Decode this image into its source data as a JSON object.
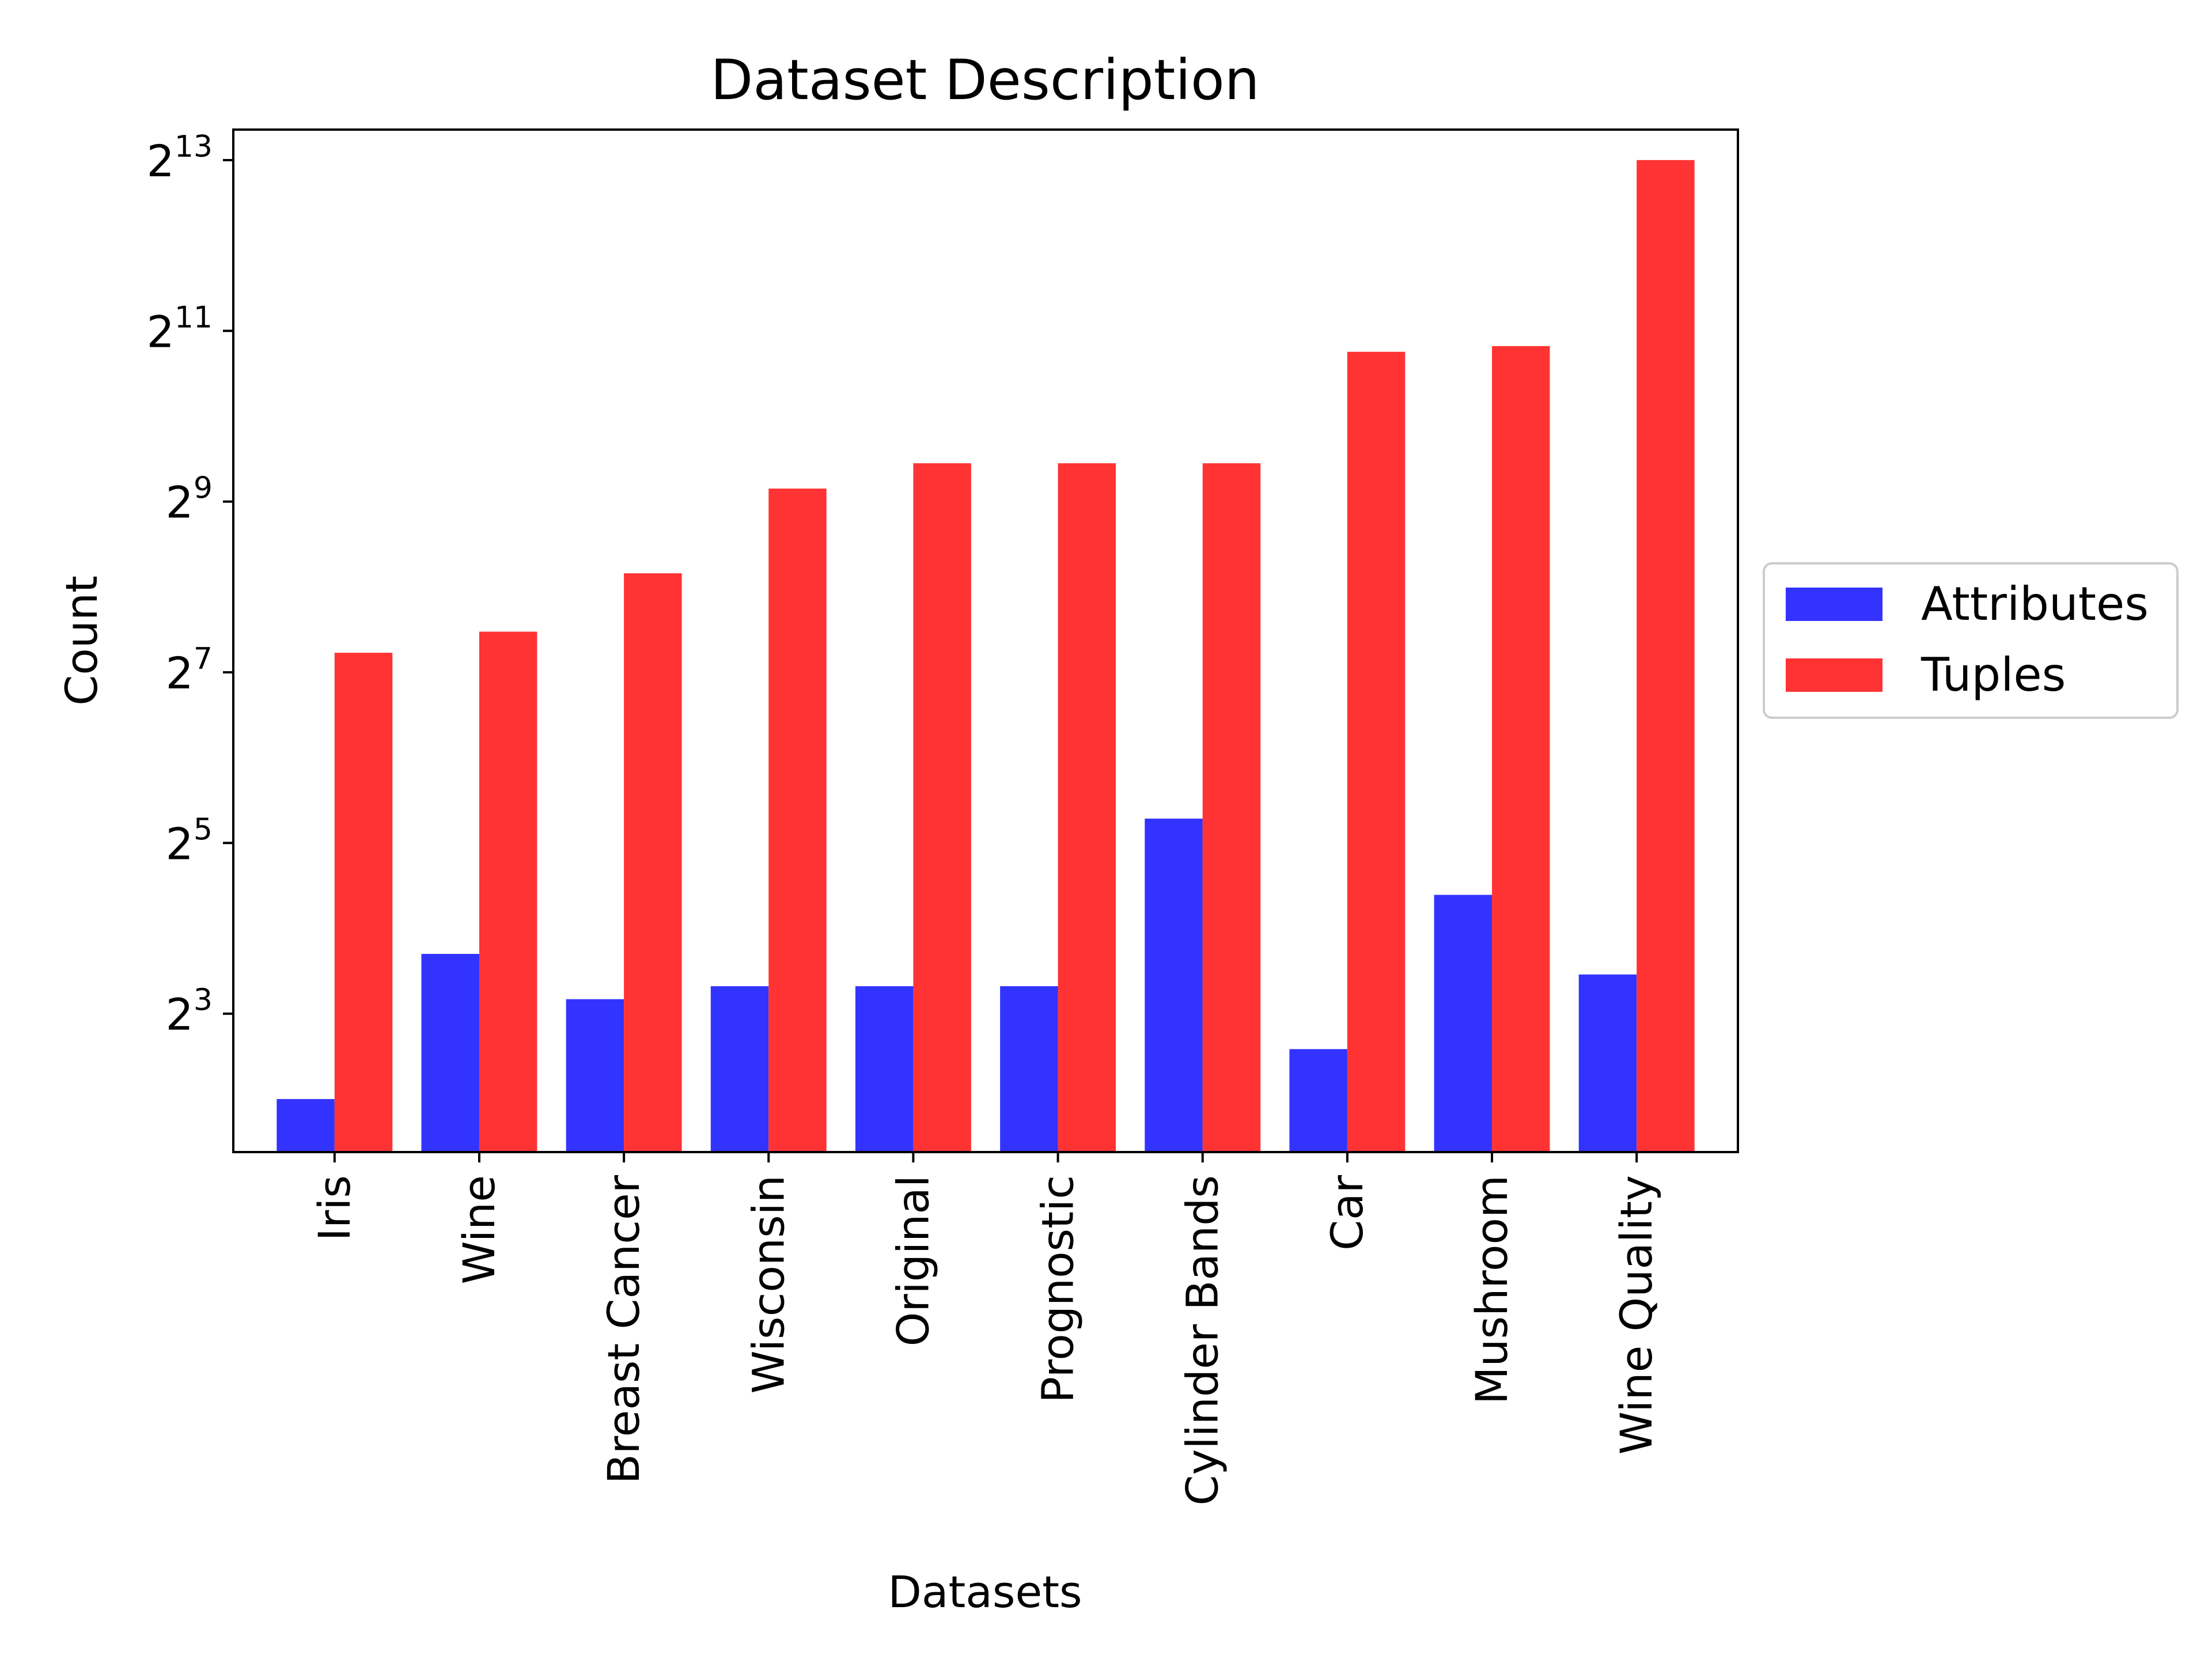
{
  "chart_data": {
    "type": "bar",
    "title": "Dataset Description",
    "xlabel": "Datasets",
    "ylabel": "Count",
    "y_scale": "log2",
    "ylim": [
      2.6,
      10500
    ],
    "y_ticks": [
      {
        "value": 8,
        "base": "2",
        "exp": "3"
      },
      {
        "value": 32,
        "base": "2",
        "exp": "5"
      },
      {
        "value": 128,
        "base": "2",
        "exp": "7"
      },
      {
        "value": 512,
        "base": "2",
        "exp": "9"
      },
      {
        "value": 2048,
        "base": "2",
        "exp": "11"
      },
      {
        "value": 8192,
        "base": "2",
        "exp": "13"
      }
    ],
    "categories": [
      "Iris",
      "Wine",
      "Breast Cancer",
      "Wisconsin",
      "Original",
      "Prognostic",
      "Cylinder Bands",
      "Car",
      "Mushroom",
      "Wine Quality"
    ],
    "series": [
      {
        "name": "Attributes",
        "color": "#3333ff",
        "values": [
          4,
          13,
          9,
          10,
          10,
          10,
          39,
          6,
          21,
          11
        ]
      },
      {
        "name": "Tuples",
        "color": "#ff3333",
        "values": [
          150,
          178,
          286,
          569,
          699,
          699,
          699,
          1728,
          1810,
          8200
        ]
      }
    ],
    "grid": false,
    "legend_position": "center-right-outside"
  }
}
